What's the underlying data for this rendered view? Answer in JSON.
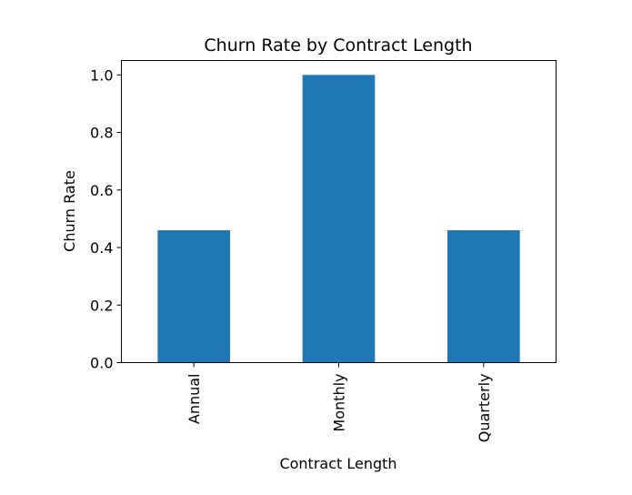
{
  "chart_data": {
    "type": "bar",
    "title": "Churn Rate by Contract Length",
    "xlabel": "Contract Length",
    "ylabel": "Churn Rate",
    "categories": [
      "Annual",
      "Monthly",
      "Quarterly"
    ],
    "values": [
      0.46,
      1.0,
      0.46
    ],
    "ylim": [
      0,
      1.05
    ],
    "yticks": [
      "0.0",
      "0.2",
      "0.4",
      "0.6",
      "0.8",
      "1.0"
    ],
    "bar_color": "#1f77b4",
    "grid": false,
    "legend": false
  }
}
